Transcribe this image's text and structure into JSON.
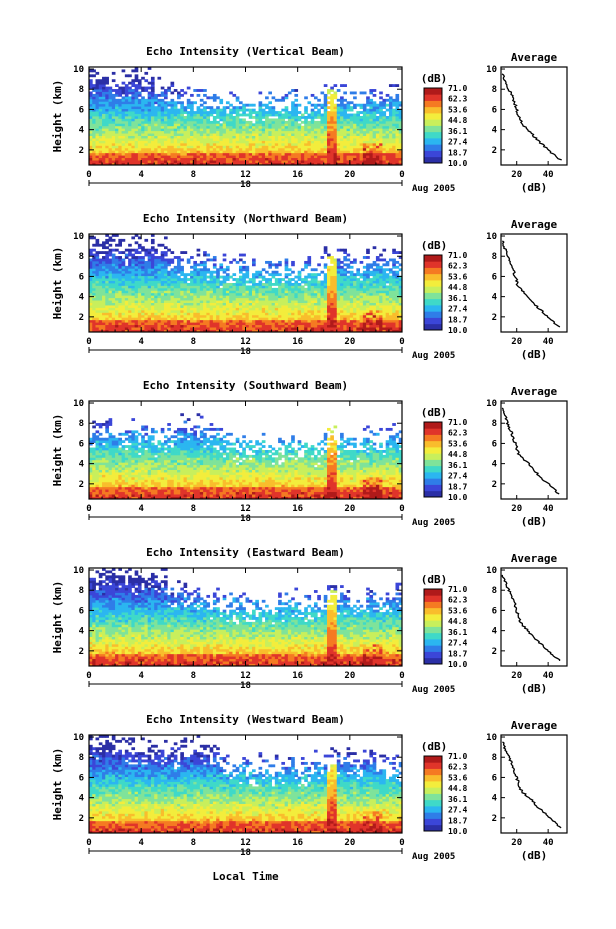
{
  "figure": {
    "bottom_xlabel": "Local Time",
    "day_marker": "18",
    "date_label": "Aug 2005",
    "cbar_unit": "(dB)",
    "cbar_ticks": [
      "71.0",
      "62.3",
      "53.6",
      "44.8",
      "36.1",
      "27.4",
      "18.7",
      "10.0"
    ],
    "cbar_colors": [
      "#2b2fa6",
      "#3b46d8",
      "#2f7de8",
      "#2bb6f0",
      "#3fd9c8",
      "#7fe39a",
      "#c8ef5c",
      "#f3ed3c",
      "#f9bd2c",
      "#f57a22",
      "#e0342a",
      "#b01a1a"
    ]
  },
  "chart_data": [
    {
      "type": "heatmap",
      "title": "Echo Intensity (Vertical Beam)",
      "xlabel": "",
      "ylabel": "Height (km)",
      "xlim": [
        0,
        24
      ],
      "ylim": [
        0.5,
        10.2
      ],
      "xticks": [
        "0",
        "4",
        "8",
        "12",
        "16",
        "20",
        "0"
      ],
      "yticks": [
        "2",
        "4",
        "6",
        "8",
        "10"
      ],
      "zlim": [
        10.0,
        71.0
      ],
      "zunit": "dB",
      "echo_top_km": [
        8.7,
        8.8,
        8.3,
        8.6,
        8.5,
        7.6,
        7.2,
        6.9,
        6.8,
        6.1,
        6.2,
        6.3,
        6.0,
        6.5,
        6.2,
        6.4,
        5.9,
        6.4,
        7.4,
        7.0,
        6.4,
        7.2,
        6.9,
        7.3
      ],
      "profile": {
        "title": "Average",
        "xlabel": "(dB)",
        "xticks": [
          "20",
          "40"
        ],
        "xlim": [
          10,
          52
        ],
        "height_km": [
          1.0,
          2.0,
          3.0,
          4.0,
          4.5,
          5.0,
          6.0,
          7.0,
          8.0,
          9.0,
          9.6
        ],
        "db": [
          48,
          40,
          33,
          27,
          24,
          22,
          20,
          18,
          15,
          12,
          11
        ]
      }
    },
    {
      "type": "heatmap",
      "title": "Echo Intensity (Northward Beam)",
      "xlabel": "",
      "ylabel": "Height (km)",
      "xlim": [
        0,
        24
      ],
      "ylim": [
        0.5,
        10.2
      ],
      "xticks": [
        "0",
        "4",
        "8",
        "12",
        "16",
        "20",
        "0"
      ],
      "yticks": [
        "2",
        "4",
        "6",
        "8",
        "10"
      ],
      "zlim": [
        10.0,
        71.0
      ],
      "zunit": "dB",
      "echo_top_km": [
        8.9,
        9.2,
        8.6,
        9.0,
        8.9,
        8.4,
        7.3,
        7.0,
        7.1,
        6.7,
        6.5,
        6.6,
        6.1,
        6.5,
        6.3,
        6.5,
        6.1,
        6.6,
        7.6,
        7.2,
        6.6,
        7.4,
        6.8,
        7.2
      ],
      "profile": {
        "title": "Average",
        "xlabel": "(dB)",
        "xticks": [
          "20",
          "40"
        ],
        "xlim": [
          10,
          52
        ],
        "height_km": [
          1.0,
          2.0,
          3.0,
          4.0,
          4.5,
          5.0,
          6.0,
          7.0,
          8.0,
          9.0,
          9.6
        ],
        "db": [
          47,
          40,
          33,
          27,
          24,
          21,
          19,
          17,
          14,
          12,
          11
        ]
      }
    },
    {
      "type": "heatmap",
      "title": "Echo Intensity (Southward Beam)",
      "xlabel": "",
      "ylabel": "Height (km)",
      "xlim": [
        0,
        24
      ],
      "ylim": [
        0.5,
        10.2
      ],
      "xticks": [
        "0",
        "4",
        "8",
        "12",
        "16",
        "20",
        "0"
      ],
      "yticks": [
        "2",
        "4",
        "6",
        "8",
        "10"
      ],
      "zlim": [
        10.0,
        71.0
      ],
      "zunit": "dB",
      "echo_top_km": [
        6.8,
        7.0,
        6.4,
        6.6,
        6.8,
        6.2,
        6.8,
        7.4,
        7.2,
        6.6,
        6.2,
        5.4,
        5.2,
        5.4,
        5.0,
        5.3,
        5.1,
        5.4,
        6.4,
        6.1,
        5.6,
        6.1,
        5.8,
        6.4
      ],
      "profile": {
        "title": "Average",
        "xlabel": "(dB)",
        "xticks": [
          "20",
          "40"
        ],
        "xlim": [
          10,
          52
        ],
        "height_km": [
          1.0,
          2.0,
          3.0,
          4.0,
          4.5,
          5.0,
          6.0,
          7.0,
          8.0,
          9.0,
          9.6
        ],
        "db": [
          47,
          40,
          33,
          28,
          24,
          21,
          19,
          17,
          14,
          12,
          11
        ]
      }
    },
    {
      "type": "heatmap",
      "title": "Echo Intensity (Eastward Beam)",
      "xlabel": "",
      "ylabel": "Height (km)",
      "xlim": [
        0,
        24
      ],
      "ylim": [
        0.5,
        10.2
      ],
      "xticks": [
        "0",
        "4",
        "8",
        "12",
        "16",
        "20",
        "0"
      ],
      "yticks": [
        "2",
        "4",
        "6",
        "8",
        "10"
      ],
      "zlim": [
        10.0,
        71.0
      ],
      "zunit": "dB",
      "echo_top_km": [
        9.7,
        9.6,
        9.4,
        9.2,
        9.3,
        8.7,
        7.6,
        7.2,
        7.0,
        6.6,
        6.3,
        6.2,
        5.9,
        6.3,
        6.0,
        6.4,
        6.0,
        6.5,
        7.2,
        7.0,
        6.5,
        7.3,
        6.6,
        7.0
      ],
      "profile": {
        "title": "Average",
        "xlabel": "(dB)",
        "xticks": [
          "20",
          "40"
        ],
        "xlim": [
          10,
          52
        ],
        "height_km": [
          1.0,
          2.0,
          3.0,
          4.0,
          4.5,
          5.0,
          6.0,
          7.0,
          8.0,
          9.0,
          9.6
        ],
        "db": [
          48,
          40,
          33,
          27,
          24,
          22,
          20,
          18,
          15,
          12,
          11
        ]
      }
    },
    {
      "type": "heatmap",
      "title": "Echo Intensity (Westward Beam)",
      "xlabel": "Local Time",
      "ylabel": "Height (km)",
      "xlim": [
        0,
        24
      ],
      "ylim": [
        0.5,
        10.2
      ],
      "xticks": [
        "0",
        "4",
        "8",
        "12",
        "16",
        "20",
        "0"
      ],
      "yticks": [
        "2",
        "4",
        "6",
        "8",
        "10"
      ],
      "zlim": [
        10.0,
        71.0
      ],
      "zunit": "dB",
      "echo_top_km": [
        9.4,
        9.3,
        8.8,
        8.6,
        8.6,
        8.3,
        8.1,
        8.4,
        8.5,
        8.0,
        7.2,
        6.6,
        6.2,
        6.8,
        6.4,
        6.8,
        6.3,
        6.9,
        7.4,
        7.2,
        6.8,
        7.5,
        6.6,
        6.9
      ],
      "profile": {
        "title": "Average",
        "xlabel": "(dB)",
        "xticks": [
          "20",
          "40"
        ],
        "xlim": [
          10,
          52
        ],
        "height_km": [
          1.0,
          2.0,
          3.0,
          4.0,
          4.5,
          5.0,
          6.0,
          7.0,
          8.0,
          9.0,
          9.6
        ],
        "db": [
          48,
          41,
          34,
          28,
          24,
          22,
          20,
          18,
          15,
          12,
          11
        ]
      }
    }
  ]
}
